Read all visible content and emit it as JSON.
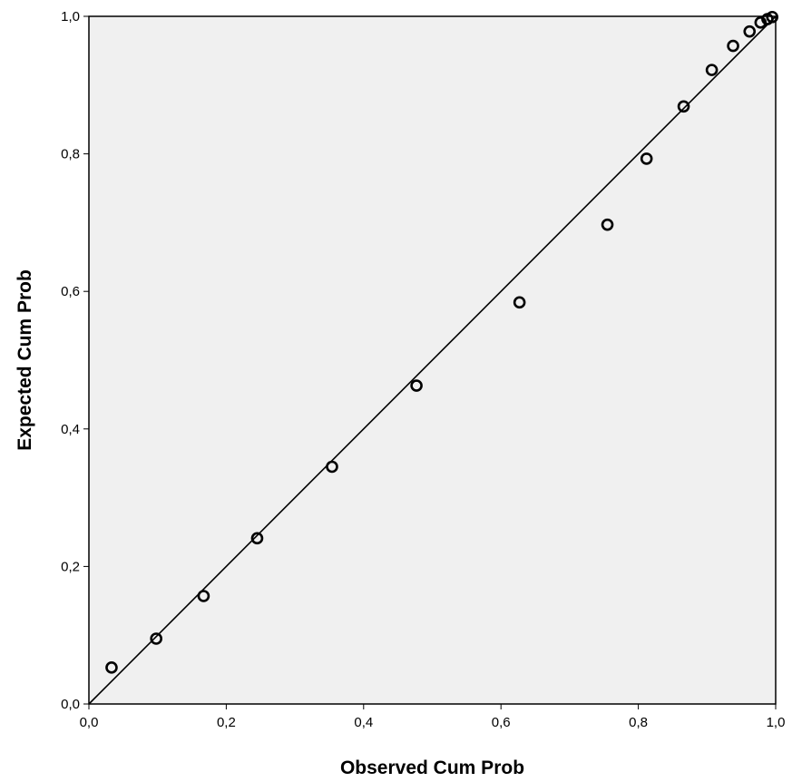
{
  "chart_data": {
    "type": "scatter",
    "title": "",
    "xlabel": "Observed Cum Prob",
    "ylabel": "Expected Cum Prob",
    "xlim": [
      0,
      1
    ],
    "ylim": [
      0,
      1
    ],
    "x_ticks": [
      "0,0",
      "0,2",
      "0,4",
      "0,6",
      "0,8",
      "1,0"
    ],
    "y_ticks": [
      "0,0",
      "0,2",
      "0,4",
      "0,6",
      "0,8",
      "1,0"
    ],
    "x_tick_values": [
      0,
      0.2,
      0.4,
      0.6,
      0.8,
      1.0
    ],
    "y_tick_values": [
      0,
      0.2,
      0.4,
      0.6,
      0.8,
      1.0
    ],
    "grid": false,
    "reference_line": {
      "from": [
        0,
        0
      ],
      "to": [
        1,
        1
      ]
    },
    "series": [
      {
        "points": [
          {
            "x": 0.033,
            "y": 0.053
          },
          {
            "x": 0.098,
            "y": 0.095
          },
          {
            "x": 0.167,
            "y": 0.157
          },
          {
            "x": 0.245,
            "y": 0.241
          },
          {
            "x": 0.354,
            "y": 0.345
          },
          {
            "x": 0.477,
            "y": 0.463
          },
          {
            "x": 0.627,
            "y": 0.584
          },
          {
            "x": 0.755,
            "y": 0.697
          },
          {
            "x": 0.812,
            "y": 0.793
          },
          {
            "x": 0.866,
            "y": 0.869
          },
          {
            "x": 0.907,
            "y": 0.922
          },
          {
            "x": 0.938,
            "y": 0.957
          },
          {
            "x": 0.962,
            "y": 0.978
          },
          {
            "x": 0.978,
            "y": 0.991
          },
          {
            "x": 0.988,
            "y": 0.996
          },
          {
            "x": 0.995,
            "y": 0.999
          }
        ]
      }
    ]
  },
  "colors": {
    "plot_background": "#f0f0f0",
    "frame": "#000000",
    "reference_line": "#000000",
    "marker_stroke": "#000000"
  }
}
